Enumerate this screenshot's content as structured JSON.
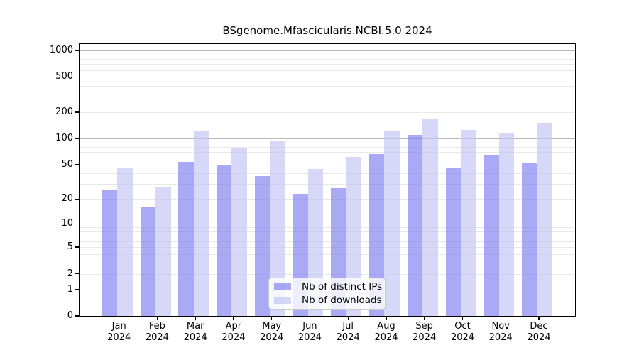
{
  "chart_data": {
    "type": "bar",
    "title": "BSgenome.Mfascicularis.NCBI.5.0 2024",
    "categories": [
      "Jan",
      "Feb",
      "Mar",
      "Apr",
      "May",
      "Jun",
      "Jul",
      "Aug",
      "Sep",
      "Oct",
      "Nov",
      "Dec"
    ],
    "category_year": "2024",
    "series": [
      {
        "name": "Nb of distinct IPs",
        "color": "#7c7cf0",
        "alpha": 0.66,
        "values": [
          26,
          16,
          54,
          50,
          37,
          23,
          27,
          67,
          111,
          46,
          64,
          53
        ]
      },
      {
        "name": "Nb of downloads",
        "color": "#c3c3f5",
        "alpha": 0.66,
        "values": [
          46,
          28,
          122,
          77,
          95,
          45,
          62,
          124,
          170,
          126,
          116,
          150
        ]
      }
    ],
    "y_scale": "log10(x+1)",
    "y_ticks": [
      0,
      1,
      2,
      5,
      10,
      20,
      50,
      100,
      200,
      500,
      1000
    ],
    "ylim": [
      0,
      1180
    ],
    "xlabel": "",
    "ylabel": "",
    "grid": "horizontal",
    "legend_position": "bottom-center",
    "colors": {
      "major_grid": "#b9b9b9",
      "minor_grid": "#e9e9e9",
      "axis": "#000000",
      "background": "#ffffff"
    }
  }
}
